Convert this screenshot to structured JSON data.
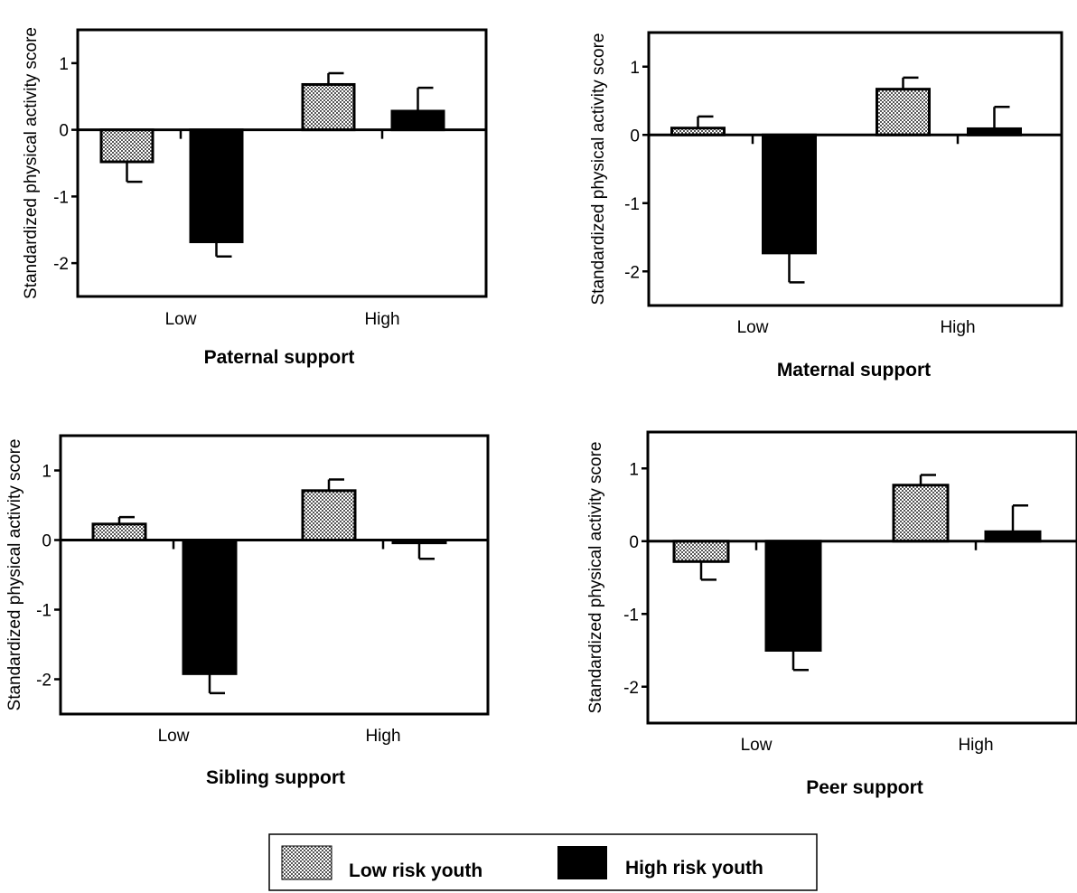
{
  "chart_data": [
    {
      "type": "bar",
      "title": "",
      "xlabel": "Paternal support",
      "ylabel": "Standardized physical activity score",
      "categories": [
        "Low",
        "High"
      ],
      "ylim": [
        -2.5,
        1.5
      ],
      "yticks": [
        -2,
        -1,
        0,
        1
      ],
      "series": [
        {
          "name": "Low risk youth",
          "values": [
            -0.48,
            0.68
          ],
          "errors": [
            0.3,
            0.17
          ]
        },
        {
          "name": "High risk youth",
          "values": [
            -1.68,
            0.28
          ],
          "errors": [
            0.22,
            0.35
          ]
        }
      ]
    },
    {
      "type": "bar",
      "title": "",
      "xlabel": "Maternal support",
      "ylabel": "Standardized physical activity score",
      "categories": [
        "Low",
        "High"
      ],
      "ylim": [
        -2.5,
        1.5
      ],
      "yticks": [
        -2,
        -1,
        0,
        1
      ],
      "series": [
        {
          "name": "Low risk youth",
          "values": [
            0.1,
            0.67
          ],
          "errors": [
            0.17,
            0.17
          ]
        },
        {
          "name": "High risk youth",
          "values": [
            -1.73,
            0.09
          ],
          "errors": [
            0.43,
            0.32
          ]
        }
      ]
    },
    {
      "type": "bar",
      "title": "",
      "xlabel": "Sibling support",
      "ylabel": "Standardized physical activity score",
      "categories": [
        "Low",
        "High"
      ],
      "ylim": [
        -2.5,
        1.5
      ],
      "yticks": [
        -2,
        -1,
        0,
        1
      ],
      "series": [
        {
          "name": "Low risk youth",
          "values": [
            0.23,
            0.71
          ],
          "errors": [
            0.1,
            0.16
          ]
        },
        {
          "name": "High risk youth",
          "values": [
            -1.92,
            -0.04
          ],
          "errors": [
            0.28,
            0.23
          ]
        }
      ]
    },
    {
      "type": "bar",
      "title": "",
      "xlabel": "Peer support",
      "ylabel": "Standardized physical activity score",
      "categories": [
        "Low",
        "High"
      ],
      "ylim": [
        -2.5,
        1.5
      ],
      "yticks": [
        -2,
        -1,
        0,
        1
      ],
      "series": [
        {
          "name": "Low risk youth",
          "values": [
            -0.28,
            0.77
          ],
          "errors": [
            0.25,
            0.14
          ]
        },
        {
          "name": "High risk youth",
          "values": [
            -1.5,
            0.13
          ],
          "errors": [
            0.27,
            0.36
          ]
        }
      ]
    }
  ],
  "legend": {
    "items": [
      {
        "label": "Low risk youth",
        "fill": "pattern"
      },
      {
        "label": "High risk youth",
        "fill": "#000000"
      }
    ]
  },
  "colors": {
    "high_risk": "#000000",
    "low_risk_pattern": "#9a9a9a",
    "background": "#ffffff"
  }
}
